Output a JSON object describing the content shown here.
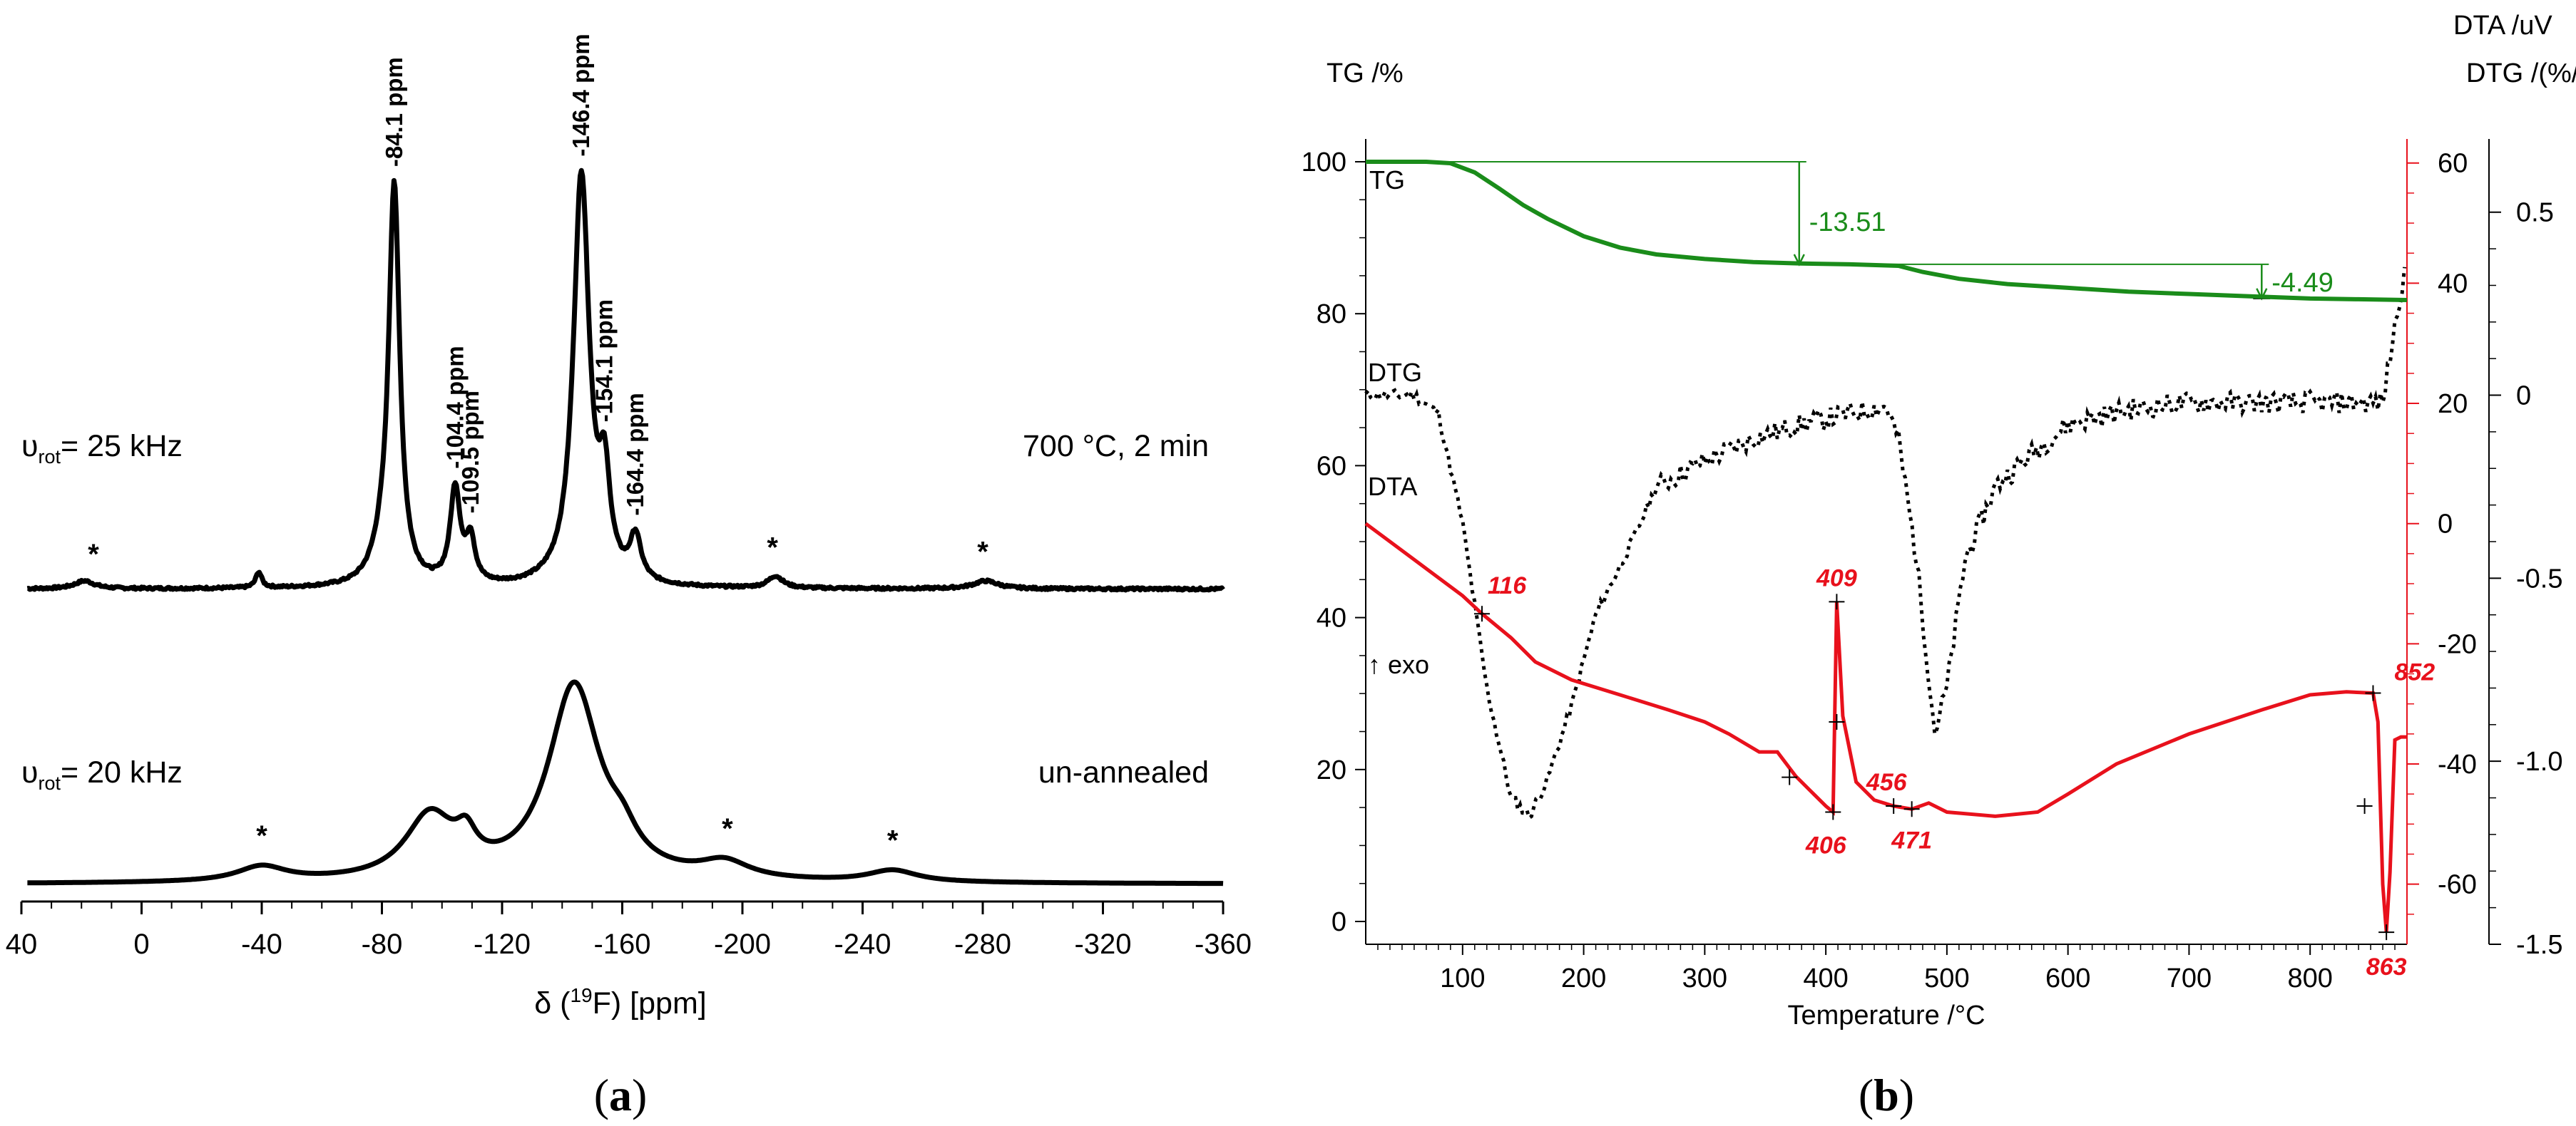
{
  "chart_data": [
    {
      "type": "line",
      "panel_label": "(a)",
      "xlabel": "δ (19F) [ppm]",
      "xlim": [
        40,
        -360
      ],
      "xticks": [
        40,
        0,
        -40,
        -80,
        -120,
        -160,
        -200,
        -240,
        -280,
        -320,
        -360
      ],
      "series": [
        {
          "name": "700 °C, 2 min",
          "rotation": "υrot= 25 kHz",
          "offset_note": "upper trace",
          "baseline": 0.06,
          "noise": 0.006,
          "peaks": [
            {
              "center": -84.1,
              "height": 1.0,
              "width": 2.2
            },
            {
              "center": -80.0,
              "height": 0.06,
              "width": 4.0
            },
            {
              "center": -104.4,
              "height": 0.24,
              "width": 2.0
            },
            {
              "center": -109.5,
              "height": 0.11,
              "width": 1.8
            },
            {
              "center": -146.4,
              "height": 1.04,
              "width": 3.2
            },
            {
              "center": -154.1,
              "height": 0.23,
              "width": 2.2
            },
            {
              "center": -164.4,
              "height": 0.11,
              "width": 2.2
            },
            {
              "center": 19,
              "height": 0.02,
              "width": 4
            },
            {
              "center": -39,
              "height": 0.04,
              "width": 1.2
            },
            {
              "center": -211,
              "height": 0.03,
              "width": 3
            },
            {
              "center": -281,
              "height": 0.02,
              "width": 5
            }
          ],
          "labels": [
            "-84.1 ppm",
            "-104.4 ppm",
            "-109.5 ppm",
            "-146.4 ppm",
            "-154.1 ppm",
            "-164.4 ppm"
          ],
          "spinning_sidebands": [
            16,
            -210,
            -280
          ]
        },
        {
          "name": "un-annealed",
          "rotation": "υrot= 20 kHz",
          "offset_note": "lower trace",
          "baseline": 0.02,
          "noise": 0.0,
          "peaks": [
            {
              "center": -144.0,
              "height": 0.59,
              "width": 10.5
            },
            {
              "center": -96.0,
              "height": 0.19,
              "width": 10.0
            },
            {
              "center": -108.0,
              "height": 0.08,
              "width": 4.0
            },
            {
              "center": -160.0,
              "height": 0.07,
              "width": 6.0
            },
            {
              "center": -40.0,
              "height": 0.045,
              "width": 10.0
            },
            {
              "center": -194.0,
              "height": 0.05,
              "width": 10.0
            },
            {
              "center": -250.0,
              "height": 0.035,
              "width": 10.0
            }
          ],
          "spinning_sidebands": [
            -40,
            -195,
            -250
          ]
        }
      ],
      "sideband_marker": "*"
    },
    {
      "type": "line",
      "panel_label": "(b)",
      "xlabel": "Temperature /°C",
      "xlim": [
        20,
        880
      ],
      "xticks": [
        100,
        200,
        300,
        400,
        500,
        600,
        700,
        800
      ],
      "axes": {
        "tg": {
          "label": "TG /%",
          "ylim": [
            -3,
            103
          ],
          "ticks": [
            0,
            20,
            40,
            60,
            80,
            100
          ]
        },
        "dta": {
          "label": "DTA /uV",
          "ylim": [
            -70,
            64
          ],
          "ticks": [
            -60,
            -40,
            -20,
            0,
            20,
            40,
            60
          ]
        },
        "dtg": {
          "label": "DTG /(%/min)",
          "ylim": [
            -1.5,
            0.7
          ],
          "ticks": [
            0.5,
            0,
            -0.5,
            -1.0,
            -1.5
          ],
          "tick_labels": [
            "0.5",
            "0",
            "-0.5",
            "-1.0",
            "-1.5"
          ]
        }
      },
      "series": [
        {
          "name": "TG",
          "axis": "tg",
          "color": "#1a8c1a",
          "points": [
            [
              20,
              100
            ],
            [
              70,
              100
            ],
            [
              90,
              99.8
            ],
            [
              110,
              98.6
            ],
            [
              130,
              96.5
            ],
            [
              150,
              94.3
            ],
            [
              170,
              92.5
            ],
            [
              200,
              90.2
            ],
            [
              230,
              88.7
            ],
            [
              260,
              87.8
            ],
            [
              300,
              87.2
            ],
            [
              340,
              86.8
            ],
            [
              380,
              86.6
            ],
            [
              420,
              86.5
            ],
            [
              460,
              86.3
            ],
            [
              480,
              85.5
            ],
            [
              510,
              84.6
            ],
            [
              550,
              83.9
            ],
            [
              600,
              83.4
            ],
            [
              650,
              82.9
            ],
            [
              700,
              82.6
            ],
            [
              750,
              82.3
            ],
            [
              800,
              82.0
            ],
            [
              840,
              81.9
            ],
            [
              880,
              81.8
            ]
          ],
          "annotations": [
            {
              "label": "-13.51",
              "x": 378,
              "from": 100,
              "to": 86.5
            },
            {
              "label": "-4.49",
              "x": 760,
              "from": 86.5,
              "to": 82.0
            }
          ]
        },
        {
          "name": "DTG",
          "axis": "dtg",
          "color": "#000000",
          "dash": "dotted",
          "points": [
            [
              20,
              0.0
            ],
            [
              60,
              0.0
            ],
            [
              80,
              -0.05
            ],
            [
              100,
              -0.35
            ],
            [
              120,
              -0.8
            ],
            [
              140,
              -1.1
            ],
            [
              155,
              -1.15
            ],
            [
              170,
              -1.05
            ],
            [
              190,
              -0.85
            ],
            [
              210,
              -0.6
            ],
            [
              240,
              -0.4
            ],
            [
              260,
              -0.25
            ],
            [
              300,
              -0.18
            ],
            [
              340,
              -0.12
            ],
            [
              380,
              -0.08
            ],
            [
              420,
              -0.05
            ],
            [
              450,
              -0.03
            ],
            [
              460,
              -0.12
            ],
            [
              475,
              -0.45
            ],
            [
              490,
              -0.92
            ],
            [
              500,
              -0.8
            ],
            [
              515,
              -0.45
            ],
            [
              540,
              -0.25
            ],
            [
              570,
              -0.16
            ],
            [
              600,
              -0.08
            ],
            [
              650,
              -0.04
            ],
            [
              700,
              -0.02
            ],
            [
              750,
              -0.02
            ],
            [
              800,
              -0.02
            ],
            [
              860,
              -0.02
            ],
            [
              878,
              0.35
            ]
          ]
        },
        {
          "name": "DTA",
          "axis": "dta",
          "color": "#e8111c",
          "points": [
            [
              20,
              0
            ],
            [
              40,
              -3
            ],
            [
              60,
              -6
            ],
            [
              80,
              -9
            ],
            [
              100,
              -12
            ],
            [
              116,
              -15
            ],
            [
              140,
              -19
            ],
            [
              160,
              -23
            ],
            [
              190,
              -26
            ],
            [
              230,
              -28.5
            ],
            [
              270,
              -31
            ],
            [
              300,
              -33
            ],
            [
              320,
              -35
            ],
            [
              345,
              -38
            ],
            [
              360,
              -38
            ],
            [
              375,
              -42
            ],
            [
              390,
              -45
            ],
            [
              400,
              -47
            ],
            [
              406,
              -48
            ],
            [
              409,
              -13
            ],
            [
              414,
              -32
            ],
            [
              425,
              -43
            ],
            [
              440,
              -46
            ],
            [
              456,
              -47
            ],
            [
              471,
              -47.5
            ],
            [
              485,
              -46.5
            ],
            [
              500,
              -48
            ],
            [
              540,
              -48.7
            ],
            [
              575,
              -48
            ],
            [
              600,
              -45
            ],
            [
              640,
              -40
            ],
            [
              700,
              -35
            ],
            [
              760,
              -31
            ],
            [
              800,
              -28.5
            ],
            [
              830,
              -28
            ],
            [
              852,
              -28.2
            ],
            [
              856,
              -33
            ],
            [
              860,
              -60
            ],
            [
              863,
              -68
            ],
            [
              866,
              -58
            ],
            [
              870,
              -36
            ],
            [
              875,
              -35.5
            ],
            [
              880,
              -35.5
            ]
          ],
          "annotations": [
            {
              "label": "116",
              "x": 116,
              "value": -15
            },
            {
              "label": "406",
              "x": 406,
              "value": -48
            },
            {
              "label": "409",
              "x": 409,
              "value": -13
            },
            {
              "label": "456",
              "x": 456,
              "value": -47
            },
            {
              "label": "471",
              "x": 471,
              "value": -47.5
            },
            {
              "label": "852",
              "x": 852,
              "value": -28.2
            },
            {
              "label": "863",
              "x": 863,
              "value": -68
            }
          ]
        }
      ],
      "notes": [
        "↑ exo"
      ]
    }
  ]
}
